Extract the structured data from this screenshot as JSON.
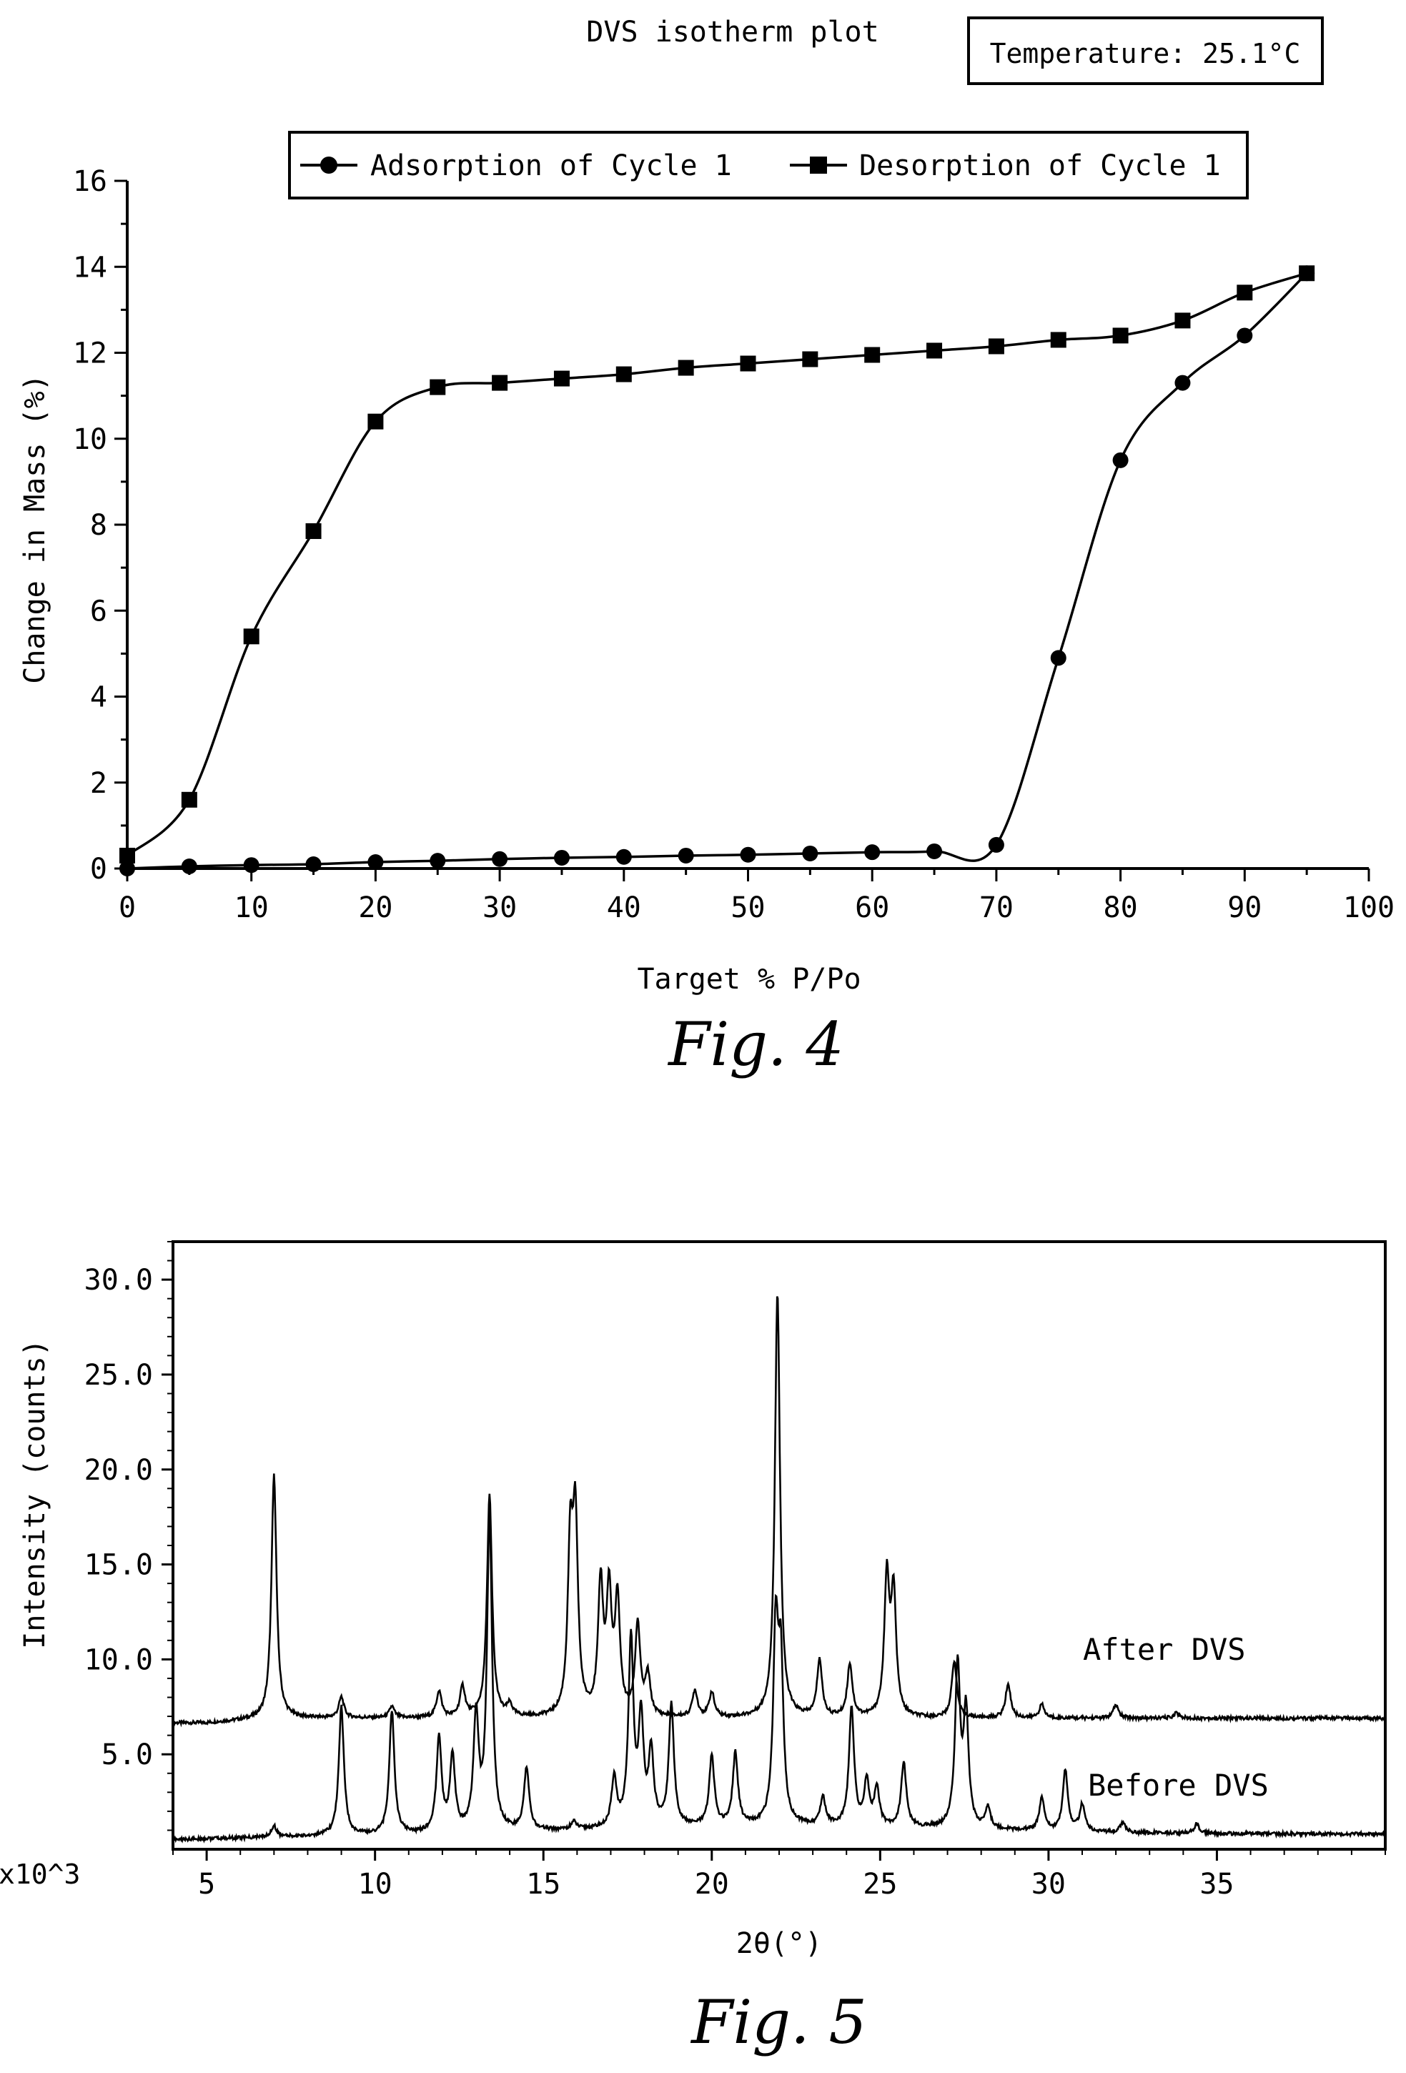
{
  "chart_data": [
    {
      "type": "line",
      "title": "DVS isotherm plot",
      "annotation": "Temperature: 25.1°C",
      "xlabel": "Target % P/Po",
      "ylabel": "Change in Mass (%)",
      "xlim": [
        0,
        100
      ],
      "ylim": [
        0,
        16
      ],
      "xticks": [
        "0",
        "10",
        "20",
        "30",
        "40",
        "50",
        "60",
        "70",
        "80",
        "90",
        "100"
      ],
      "yticks": [
        "0",
        "2",
        "4",
        "6",
        "8",
        "10",
        "12",
        "14",
        "16"
      ],
      "legend_position": "top",
      "grid": false,
      "caption": "Fig. 4",
      "series": [
        {
          "name": "Adsorption of Cycle 1",
          "marker": "circle",
          "x": [
            0,
            5,
            10,
            15,
            20,
            25,
            30,
            35,
            40,
            45,
            50,
            55,
            60,
            65,
            70,
            75,
            80,
            85,
            90,
            95
          ],
          "y": [
            0.0,
            0.05,
            0.08,
            0.1,
            0.15,
            0.18,
            0.22,
            0.25,
            0.27,
            0.3,
            0.32,
            0.35,
            0.38,
            0.4,
            0.55,
            4.9,
            9.5,
            11.3,
            12.4,
            13.85
          ]
        },
        {
          "name": "Desorption of Cycle 1",
          "marker": "square",
          "x": [
            0,
            5,
            10,
            15,
            20,
            25,
            30,
            35,
            40,
            45,
            50,
            55,
            60,
            65,
            70,
            75,
            80,
            85,
            90,
            95
          ],
          "y": [
            0.3,
            1.6,
            5.4,
            7.85,
            10.4,
            11.2,
            11.3,
            11.4,
            11.5,
            11.65,
            11.75,
            11.85,
            11.95,
            12.05,
            12.15,
            12.3,
            12.4,
            12.75,
            13.4,
            13.85
          ]
        }
      ]
    },
    {
      "type": "line",
      "xlabel": "2θ(°)",
      "ylabel": "Intensity (counts)",
      "multiplier_label": "x10^3",
      "xlim": [
        4,
        40
      ],
      "ylim": [
        0,
        32
      ],
      "xticks": [
        "5",
        "10",
        "15",
        "20",
        "25",
        "30",
        "35"
      ],
      "yticks": [
        "5.0",
        "10.0",
        "15.0",
        "20.0",
        "25.0",
        "30.0"
      ],
      "grid": false,
      "caption": "Fig. 5",
      "series": [
        {
          "name": "After DVS",
          "baseline": 6.9,
          "peaks": [
            [
              7.0,
              12.8
            ],
            [
              9.0,
              1.1
            ],
            [
              10.5,
              0.6
            ],
            [
              11.9,
              1.4
            ],
            [
              12.6,
              1.6
            ],
            [
              13.4,
              11.7
            ],
            [
              14.0,
              0.6
            ],
            [
              15.8,
              8.6
            ],
            [
              15.95,
              9.8
            ],
            [
              16.7,
              6.8
            ],
            [
              16.95,
              6.2
            ],
            [
              17.2,
              5.9
            ],
            [
              17.8,
              4.8
            ],
            [
              18.1,
              2.1
            ],
            [
              19.5,
              1.4
            ],
            [
              20.0,
              1.3
            ],
            [
              21.95,
              22.4
            ],
            [
              23.2,
              3.0
            ],
            [
              24.1,
              2.8
            ],
            [
              25.2,
              7.2
            ],
            [
              25.4,
              6.3
            ],
            [
              27.2,
              3.0
            ],
            [
              28.8,
              1.8
            ],
            [
              29.8,
              0.7
            ],
            [
              32.0,
              0.7
            ],
            [
              33.8,
              0.3
            ]
          ]
        },
        {
          "name": "Before DVS",
          "baseline": 0.8,
          "peaks": [
            [
              7.0,
              0.6
            ],
            [
              9.0,
              6.8
            ],
            [
              10.5,
              6.5
            ],
            [
              11.9,
              5.0
            ],
            [
              12.3,
              4.0
            ],
            [
              13.0,
              6.0
            ],
            [
              13.4,
              16.5
            ],
            [
              14.5,
              3.3
            ],
            [
              15.9,
              0.4
            ],
            [
              17.1,
              2.6
            ],
            [
              17.6,
              9.8
            ],
            [
              17.9,
              5.5
            ],
            [
              18.2,
              3.8
            ],
            [
              18.8,
              6.4
            ],
            [
              20.0,
              3.7
            ],
            [
              20.7,
              3.8
            ],
            [
              21.9,
              10.0
            ],
            [
              22.05,
              8.0
            ],
            [
              23.3,
              1.5
            ],
            [
              24.15,
              6.2
            ],
            [
              24.6,
              2.3
            ],
            [
              24.9,
              2.0
            ],
            [
              25.7,
              3.4
            ],
            [
              27.3,
              8.5
            ],
            [
              27.55,
              6.0
            ],
            [
              28.2,
              1.1
            ],
            [
              29.8,
              1.7
            ],
            [
              30.5,
              3.2
            ],
            [
              31.0,
              1.4
            ],
            [
              32.2,
              0.5
            ],
            [
              34.4,
              0.5
            ]
          ]
        }
      ]
    }
  ]
}
